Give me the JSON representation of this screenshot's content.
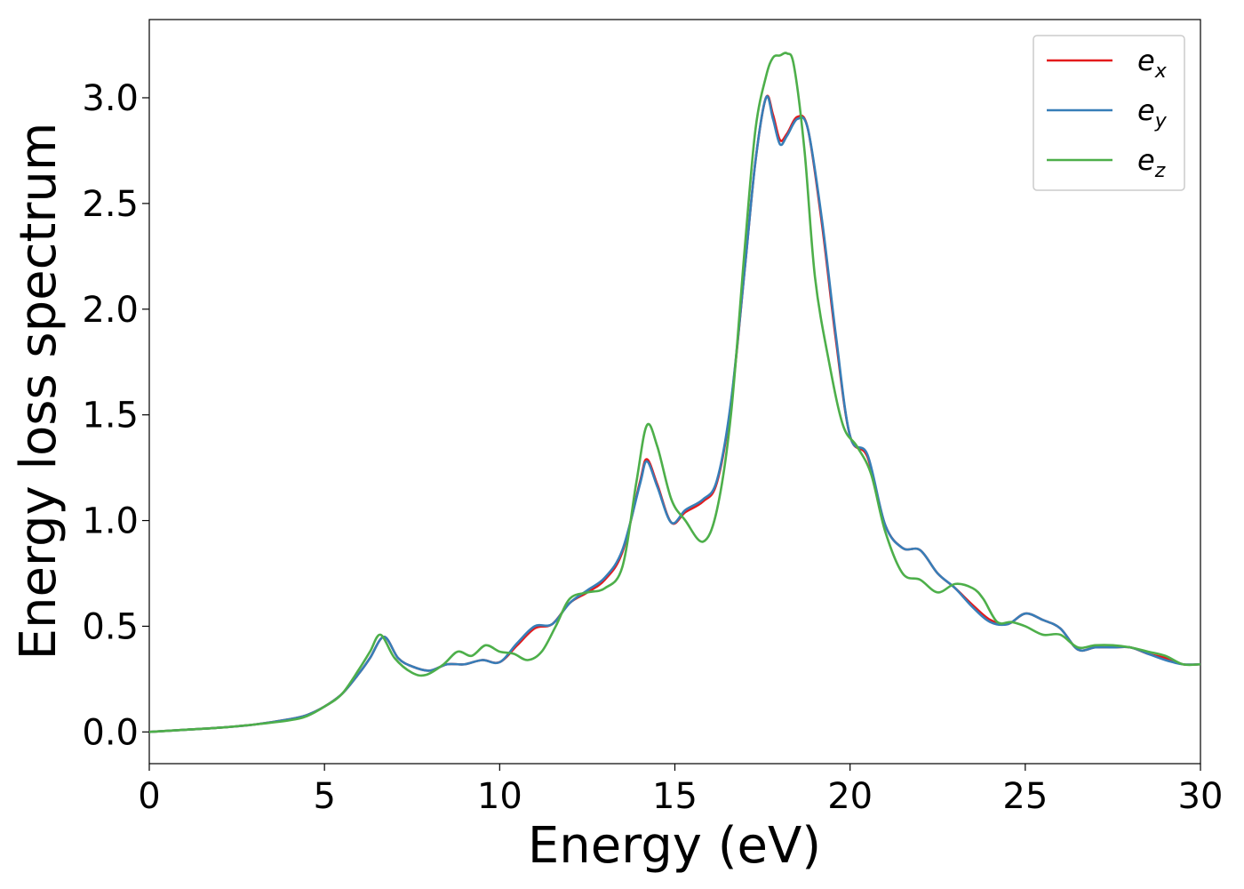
{
  "chart_data": {
    "type": "line",
    "title": "",
    "xlabel": "Energy (eV)",
    "ylabel": "Energy loss spectrum",
    "xlim": [
      0,
      30
    ],
    "ylim": [
      -0.15,
      3.37
    ],
    "xticks": [
      0,
      5,
      10,
      15,
      20,
      25,
      30
    ],
    "xtick_labels": [
      "0",
      "5",
      "10",
      "15",
      "20",
      "25",
      "30"
    ],
    "yticks": [
      0.0,
      0.5,
      1.0,
      1.5,
      2.0,
      2.5,
      3.0
    ],
    "ytick_labels": [
      "0.0",
      "0.5",
      "1.0",
      "1.5",
      "2.0",
      "2.5",
      "3.0"
    ],
    "grid": false,
    "legend_position": "top-right",
    "series": [
      {
        "name": "e_x",
        "legend_base": "e",
        "legend_sub": "x",
        "color": "#e41a1c",
        "points": [
          [
            0,
            0
          ],
          [
            1,
            0.01
          ],
          [
            2,
            0.02
          ],
          [
            3,
            0.035
          ],
          [
            4,
            0.06
          ],
          [
            4.5,
            0.08
          ],
          [
            5,
            0.12
          ],
          [
            5.5,
            0.18
          ],
          [
            6,
            0.28
          ],
          [
            6.3,
            0.35
          ],
          [
            6.7,
            0.45
          ],
          [
            7.1,
            0.35
          ],
          [
            7.5,
            0.31
          ],
          [
            8,
            0.29
          ],
          [
            8.5,
            0.32
          ],
          [
            9,
            0.32
          ],
          [
            9.5,
            0.34
          ],
          [
            10,
            0.33
          ],
          [
            10.5,
            0.41
          ],
          [
            11,
            0.49
          ],
          [
            11.5,
            0.51
          ],
          [
            12,
            0.61
          ],
          [
            12.5,
            0.66
          ],
          [
            13,
            0.72
          ],
          [
            13.5,
            0.85
          ],
          [
            14,
            1.18
          ],
          [
            14.2,
            1.29
          ],
          [
            14.5,
            1.17
          ],
          [
            14.9,
            0.99
          ],
          [
            15.3,
            1.04
          ],
          [
            15.8,
            1.09
          ],
          [
            16.2,
            1.18
          ],
          [
            16.6,
            1.55
          ],
          [
            17,
            2.2
          ],
          [
            17.3,
            2.7
          ],
          [
            17.6,
            3.0
          ],
          [
            17.8,
            2.92
          ],
          [
            18,
            2.8
          ],
          [
            18.2,
            2.83
          ],
          [
            18.5,
            2.91
          ],
          [
            18.8,
            2.85
          ],
          [
            19.2,
            2.4
          ],
          [
            19.6,
            1.85
          ],
          [
            20,
            1.4
          ],
          [
            20.5,
            1.3
          ],
          [
            21,
            0.98
          ],
          [
            21.5,
            0.87
          ],
          [
            22,
            0.86
          ],
          [
            22.5,
            0.75
          ],
          [
            23,
            0.68
          ],
          [
            23.5,
            0.6
          ],
          [
            24,
            0.53
          ],
          [
            24.5,
            0.51
          ],
          [
            25,
            0.56
          ],
          [
            25.5,
            0.53
          ],
          [
            26,
            0.49
          ],
          [
            26.5,
            0.39
          ],
          [
            27,
            0.4
          ],
          [
            27.5,
            0.4
          ],
          [
            28,
            0.4
          ],
          [
            28.5,
            0.37
          ],
          [
            29,
            0.35
          ],
          [
            29.5,
            0.32
          ],
          [
            30,
            0.32
          ]
        ]
      },
      {
        "name": "e_y",
        "legend_base": "e",
        "legend_sub": "y",
        "color": "#377eb8",
        "points": [
          [
            0,
            0
          ],
          [
            1,
            0.01
          ],
          [
            2,
            0.02
          ],
          [
            3,
            0.035
          ],
          [
            4,
            0.06
          ],
          [
            4.5,
            0.08
          ],
          [
            5,
            0.12
          ],
          [
            5.5,
            0.18
          ],
          [
            6,
            0.28
          ],
          [
            6.3,
            0.35
          ],
          [
            6.7,
            0.45
          ],
          [
            7.1,
            0.35
          ],
          [
            7.5,
            0.31
          ],
          [
            8,
            0.29
          ],
          [
            8.5,
            0.32
          ],
          [
            9,
            0.32
          ],
          [
            9.5,
            0.34
          ],
          [
            10,
            0.33
          ],
          [
            10.5,
            0.42
          ],
          [
            11,
            0.5
          ],
          [
            11.5,
            0.51
          ],
          [
            12,
            0.61
          ],
          [
            12.5,
            0.67
          ],
          [
            13,
            0.73
          ],
          [
            13.5,
            0.86
          ],
          [
            14,
            1.17
          ],
          [
            14.2,
            1.28
          ],
          [
            14.5,
            1.16
          ],
          [
            14.9,
            0.99
          ],
          [
            15.3,
            1.05
          ],
          [
            15.8,
            1.1
          ],
          [
            16.2,
            1.19
          ],
          [
            16.6,
            1.56
          ],
          [
            17,
            2.2
          ],
          [
            17.3,
            2.7
          ],
          [
            17.6,
            3.0
          ],
          [
            17.8,
            2.9
          ],
          [
            18,
            2.78
          ],
          [
            18.2,
            2.82
          ],
          [
            18.5,
            2.9
          ],
          [
            18.8,
            2.85
          ],
          [
            19.2,
            2.42
          ],
          [
            19.6,
            1.87
          ],
          [
            20,
            1.4
          ],
          [
            20.5,
            1.31
          ],
          [
            21,
            0.98
          ],
          [
            21.5,
            0.87
          ],
          [
            22,
            0.86
          ],
          [
            22.5,
            0.75
          ],
          [
            23,
            0.68
          ],
          [
            23.5,
            0.59
          ],
          [
            24,
            0.52
          ],
          [
            24.5,
            0.51
          ],
          [
            25,
            0.56
          ],
          [
            25.5,
            0.53
          ],
          [
            26,
            0.49
          ],
          [
            26.5,
            0.39
          ],
          [
            27,
            0.4
          ],
          [
            27.5,
            0.4
          ],
          [
            28,
            0.4
          ],
          [
            28.5,
            0.37
          ],
          [
            29,
            0.34
          ],
          [
            29.5,
            0.32
          ],
          [
            30,
            0.32
          ]
        ]
      },
      {
        "name": "e_z",
        "legend_base": "e",
        "legend_sub": "z",
        "color": "#4daf4a",
        "points": [
          [
            0,
            0
          ],
          [
            1,
            0.01
          ],
          [
            2,
            0.02
          ],
          [
            3,
            0.035
          ],
          [
            4,
            0.055
          ],
          [
            4.5,
            0.075
          ],
          [
            5,
            0.12
          ],
          [
            5.5,
            0.18
          ],
          [
            6,
            0.3
          ],
          [
            6.3,
            0.38
          ],
          [
            6.6,
            0.46
          ],
          [
            7,
            0.35
          ],
          [
            7.5,
            0.28
          ],
          [
            7.9,
            0.27
          ],
          [
            8.4,
            0.32
          ],
          [
            8.8,
            0.38
          ],
          [
            9.2,
            0.36
          ],
          [
            9.6,
            0.41
          ],
          [
            10,
            0.38
          ],
          [
            10.4,
            0.37
          ],
          [
            10.8,
            0.34
          ],
          [
            11.2,
            0.38
          ],
          [
            11.6,
            0.5
          ],
          [
            12,
            0.63
          ],
          [
            12.5,
            0.66
          ],
          [
            13,
            0.68
          ],
          [
            13.5,
            0.78
          ],
          [
            13.9,
            1.18
          ],
          [
            14.2,
            1.45
          ],
          [
            14.5,
            1.35
          ],
          [
            14.9,
            1.1
          ],
          [
            15.3,
            1.0
          ],
          [
            15.8,
            0.9
          ],
          [
            16.2,
            1.05
          ],
          [
            16.6,
            1.5
          ],
          [
            17,
            2.3
          ],
          [
            17.3,
            2.85
          ],
          [
            17.6,
            3.1
          ],
          [
            17.8,
            3.19
          ],
          [
            18,
            3.2
          ],
          [
            18.2,
            3.21
          ],
          [
            18.4,
            3.15
          ],
          [
            18.7,
            2.75
          ],
          [
            19,
            2.15
          ],
          [
            19.4,
            1.75
          ],
          [
            19.8,
            1.45
          ],
          [
            20.2,
            1.35
          ],
          [
            20.6,
            1.22
          ],
          [
            21,
            0.95
          ],
          [
            21.5,
            0.75
          ],
          [
            22,
            0.72
          ],
          [
            22.5,
            0.66
          ],
          [
            23,
            0.7
          ],
          [
            23.5,
            0.68
          ],
          [
            23.8,
            0.63
          ],
          [
            24.2,
            0.52
          ],
          [
            24.6,
            0.52
          ],
          [
            25,
            0.5
          ],
          [
            25.5,
            0.46
          ],
          [
            26,
            0.46
          ],
          [
            26.5,
            0.4
          ],
          [
            27,
            0.41
          ],
          [
            27.5,
            0.41
          ],
          [
            28,
            0.4
          ],
          [
            28.5,
            0.38
          ],
          [
            29,
            0.36
          ],
          [
            29.5,
            0.32
          ],
          [
            30,
            0.32
          ]
        ]
      }
    ]
  }
}
